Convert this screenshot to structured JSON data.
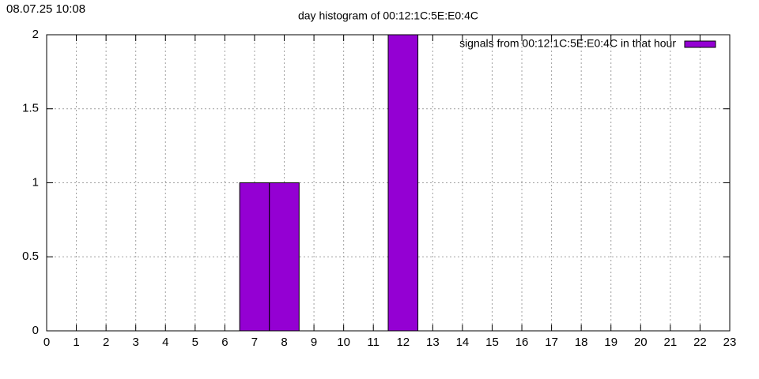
{
  "chart_data": {
    "type": "bar",
    "timestamp": "08.07.25 10:08",
    "title": "day histogram of 00:12:1C:5E:E0:4C",
    "x": [
      7,
      8,
      12
    ],
    "series": [
      {
        "name": "signals from 00:12:1C:5E:E0:4C in that hour",
        "color": "#9400d3",
        "values": [
          1,
          1,
          2
        ]
      }
    ],
    "xlim": [
      0,
      23
    ],
    "xticks": [
      0,
      1,
      2,
      3,
      4,
      5,
      6,
      7,
      8,
      9,
      10,
      11,
      12,
      13,
      14,
      15,
      16,
      17,
      18,
      19,
      20,
      21,
      22,
      23
    ],
    "ylim": [
      0,
      2
    ],
    "yticks": [
      0,
      0.5,
      1,
      1.5,
      2
    ],
    "grid": true,
    "legend": "top-right"
  }
}
